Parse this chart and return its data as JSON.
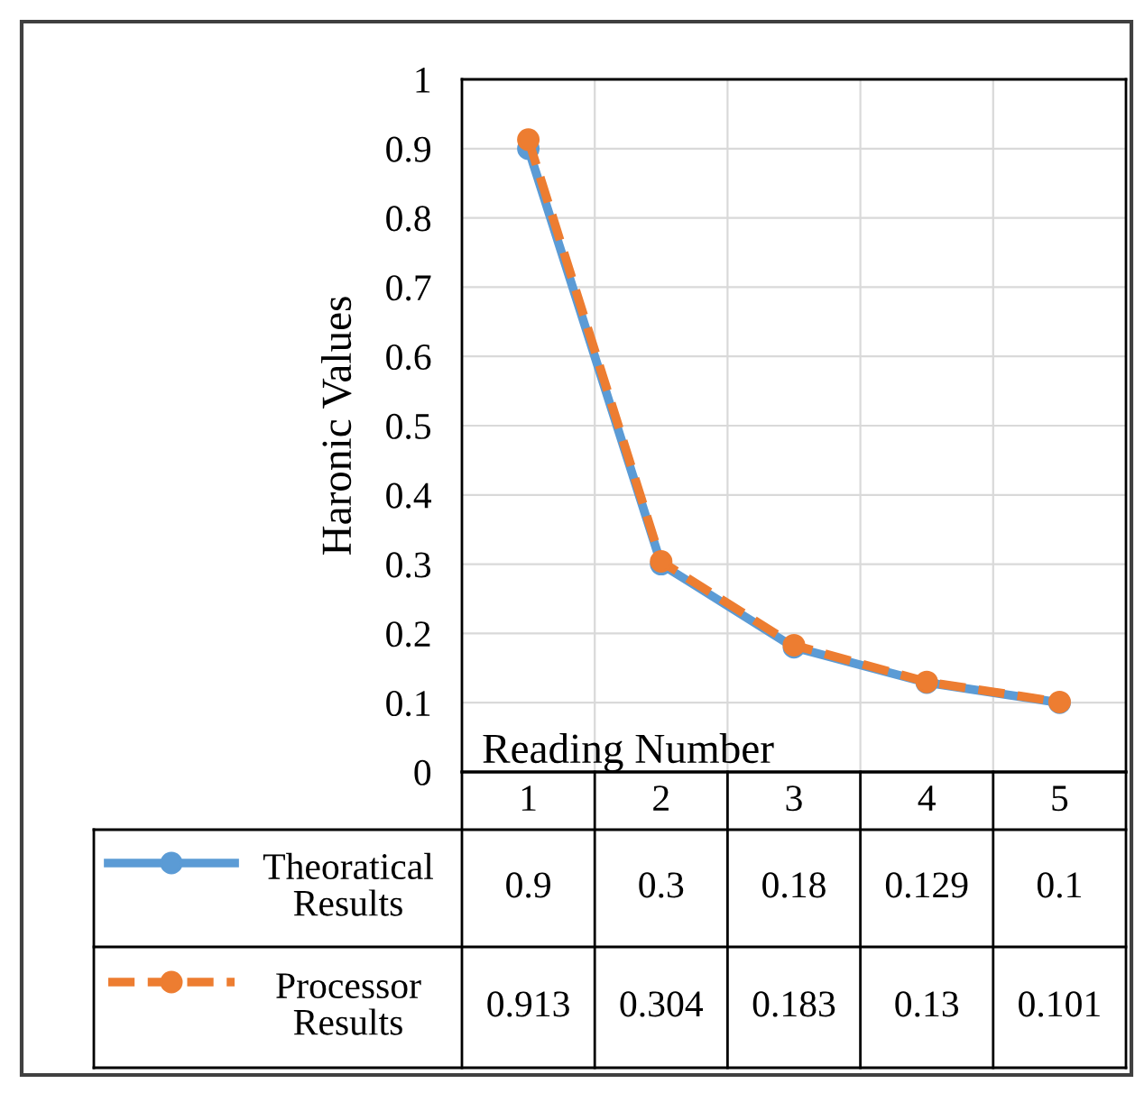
{
  "chart_data": {
    "type": "line",
    "xlabel": "Reading Number",
    "ylabel": "Haronic Values",
    "categories": [
      "1",
      "2",
      "3",
      "4",
      "5"
    ],
    "series": [
      {
        "name": "Theoratical Results",
        "color": "#5b9bd5",
        "values": [
          0.9,
          0.3,
          0.18,
          0.129,
          0.1
        ],
        "line_style": "solid"
      },
      {
        "name": "Processor Results",
        "color": "#ed7d31",
        "values": [
          0.913,
          0.304,
          0.183,
          0.13,
          0.101
        ],
        "line_style": "dashed"
      }
    ],
    "ylim": [
      0,
      1
    ],
    "yticks": [
      0,
      0.1,
      0.2,
      0.3,
      0.4,
      0.5,
      0.6,
      0.7,
      0.8,
      0.9,
      1
    ],
    "grid": true,
    "marker": "circle",
    "data_labels": true,
    "legend": "bottom"
  }
}
